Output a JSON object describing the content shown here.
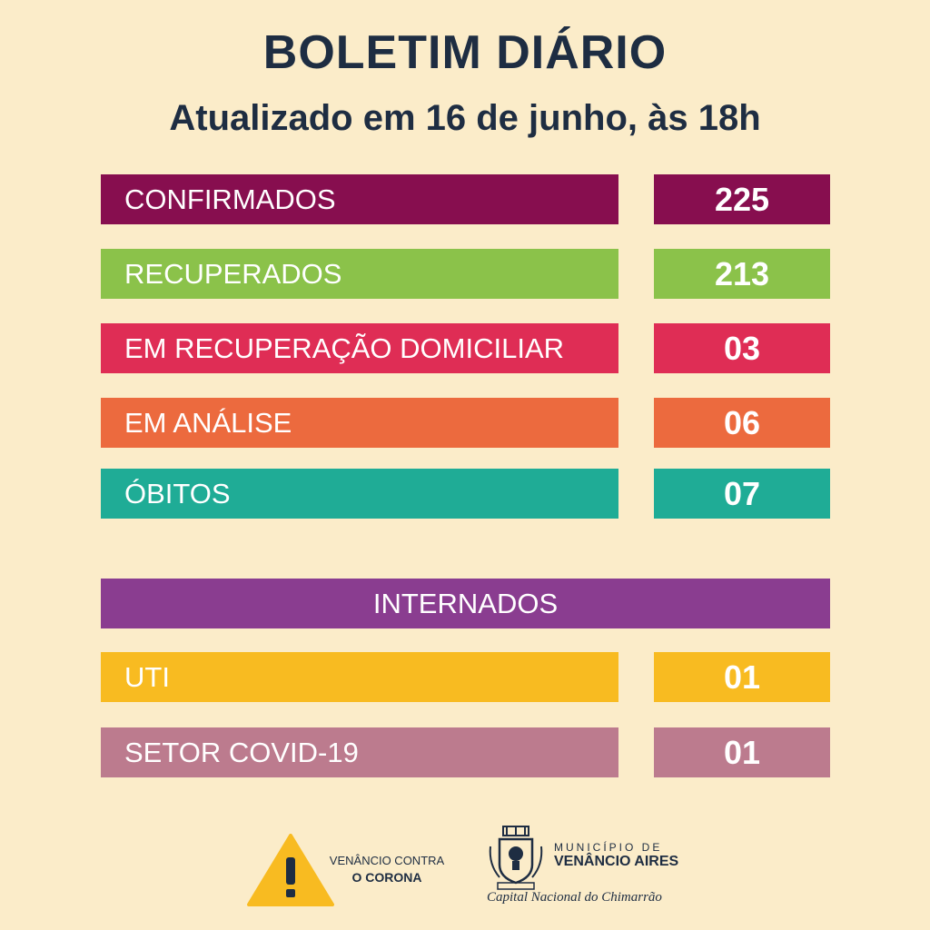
{
  "header": {
    "title": "BOLETIM DIÁRIO",
    "subtitle": "Atualizado em 16 de junho, às 18h"
  },
  "rows": [
    {
      "label": "CONFIRMADOS",
      "value": "225",
      "color": "#870e4f"
    },
    {
      "label": "RECUPERADOS",
      "value": "213",
      "color": "#8bc24a"
    },
    {
      "label": "EM RECUPERAÇÃO DOMICILIAR",
      "value": "03",
      "color": "#df2d55"
    },
    {
      "label": "EM ANÁLISE",
      "value": "06",
      "color": "#ec6a3e"
    },
    {
      "label": "ÓBITOS",
      "value": "07",
      "color": "#1fac96"
    }
  ],
  "internados": {
    "title": "INTERNADOS",
    "color": "#8a3d90",
    "rows": [
      {
        "label": "UTI",
        "value": "01",
        "color": "#f8bb21"
      },
      {
        "label": "SETOR COVID-19",
        "value": "01",
        "color": "#bc7b8e"
      }
    ]
  },
  "footer": {
    "campaign_line1": "VENÂNCIO CONTRA",
    "campaign_line2": "O CORONA",
    "municipality_line1": "MUNICÍPIO DE",
    "municipality_line2": "VENÂNCIO AIRES",
    "slogan": "Capital Nacional do Chimarrão",
    "warning_icon": "warning-triangle-icon",
    "crest_icon": "municipal-crest-icon"
  }
}
